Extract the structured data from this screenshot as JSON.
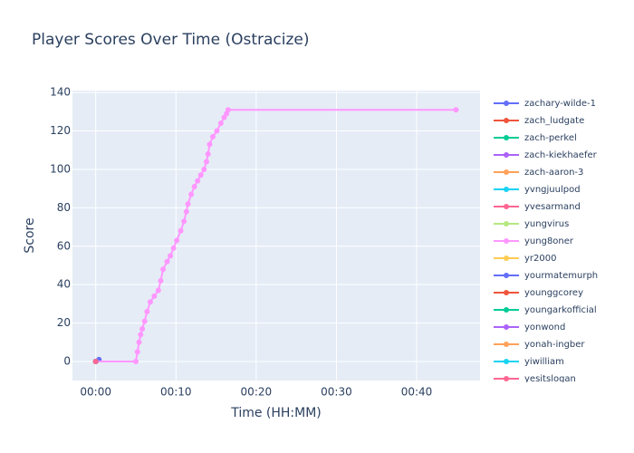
{
  "chart_data": {
    "type": "line",
    "title": "Player Scores Over Time (Ostracize)",
    "x_label": "Time (HH:MM)",
    "y_label": "Score",
    "xlim": [
      -2.9,
      47.9
    ],
    "ylim": [
      -9.9,
      141
    ],
    "xticks": [
      {
        "value": 0,
        "label": "00:00"
      },
      {
        "value": 10,
        "label": "00:10"
      },
      {
        "value": 20,
        "label": "00:20"
      },
      {
        "value": 30,
        "label": "00:30"
      },
      {
        "value": 40,
        "label": "00:40"
      }
    ],
    "yticks": [
      0,
      20,
      40,
      60,
      80,
      100,
      120,
      140
    ],
    "grid": true,
    "series": [
      {
        "name": "zachary-wilde-1",
        "color": "#636efa",
        "x": [
          0.4
        ],
        "values": [
          1
        ]
      },
      {
        "name": "zach_ludgate",
        "color": "#EF553B",
        "x": [
          0
        ],
        "values": [
          0
        ]
      },
      {
        "name": "zach-perkel",
        "color": "#00cc96",
        "x": [
          0
        ],
        "values": [
          0
        ]
      },
      {
        "name": "zach-kiekhaefer",
        "color": "#ab63fa",
        "x": [
          0
        ],
        "values": [
          0
        ]
      },
      {
        "name": "zach-aaron-3",
        "color": "#FFA15A",
        "x": [
          0
        ],
        "values": [
          0
        ]
      },
      {
        "name": "yvngjuulpod",
        "color": "#19d3f3",
        "x": [
          0
        ],
        "values": [
          0
        ]
      },
      {
        "name": "yvesarmand",
        "color": "#FF6692",
        "x": [
          0
        ],
        "values": [
          0
        ]
      },
      {
        "name": "yungvirus",
        "color": "#B6E880",
        "x": [
          0
        ],
        "values": [
          0
        ]
      },
      {
        "name": "yung8oner",
        "color": "#FF97FF",
        "x": [
          0,
          5.0,
          5.2,
          5.4,
          5.6,
          5.8,
          6.1,
          6.4,
          6.8,
          7.3,
          7.8,
          8.1,
          8.4,
          8.9,
          9.3,
          9.7,
          10.1,
          10.6,
          11.0,
          11.3,
          11.5,
          11.9,
          12.3,
          12.7,
          13.1,
          13.5,
          13.8,
          14.0,
          14.2,
          14.6,
          15.1,
          15.6,
          16.0,
          16.3,
          16.5,
          44.9
        ],
        "values": [
          0,
          0,
          5,
          10,
          14,
          17,
          21,
          26,
          31,
          34,
          37,
          42,
          48,
          52,
          55,
          59,
          63,
          68,
          73,
          78,
          82,
          87,
          91,
          94,
          97,
          100,
          104,
          108,
          113,
          117,
          120,
          124,
          127,
          129,
          131,
          131
        ]
      },
      {
        "name": "yr2000",
        "color": "#FECB52",
        "x": [
          0
        ],
        "values": [
          0
        ]
      },
      {
        "name": "yourmatemurph",
        "color": "#636efa",
        "x": [
          0
        ],
        "values": [
          0
        ]
      },
      {
        "name": "younggcorey",
        "color": "#EF553B",
        "x": [
          0
        ],
        "values": [
          0
        ]
      },
      {
        "name": "youngarkofficial",
        "color": "#00cc96",
        "x": [
          0
        ],
        "values": [
          0
        ]
      },
      {
        "name": "yonwond",
        "color": "#ab63fa",
        "x": [
          0
        ],
        "values": [
          0
        ]
      },
      {
        "name": "yonah-ingber",
        "color": "#FFA15A",
        "x": [
          0
        ],
        "values": [
          0
        ]
      },
      {
        "name": "yiwilliam",
        "color": "#19d3f3",
        "x": [
          0
        ],
        "values": [
          0
        ]
      },
      {
        "name": "yesitslogan",
        "color": "#FF6692",
        "x": [
          0
        ],
        "values": [
          0
        ]
      }
    ]
  }
}
